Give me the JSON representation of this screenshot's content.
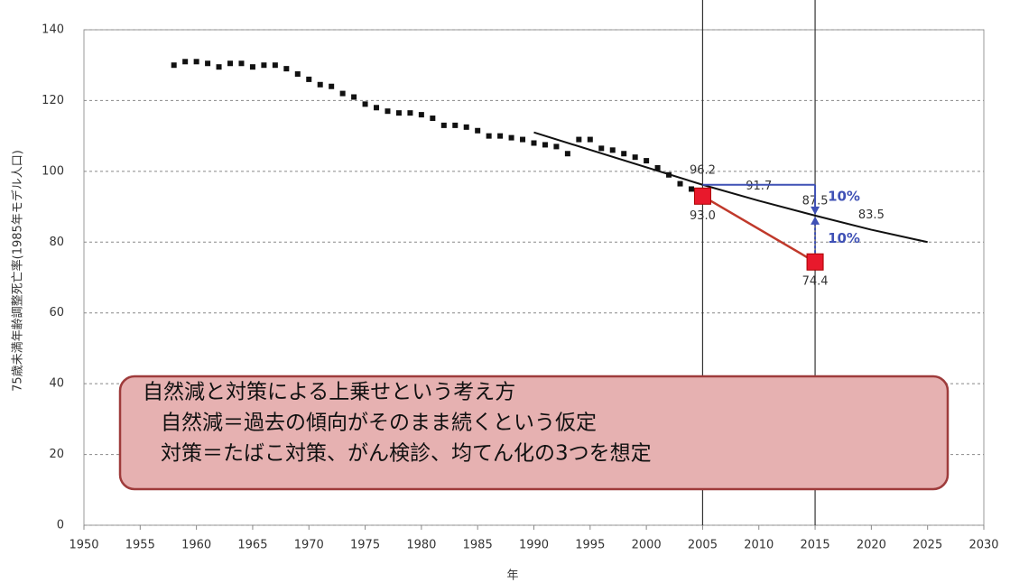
{
  "chart_data": {
    "type": "line",
    "y_label": "75歳未満年齢調整死亡率(1985年モデル人口)",
    "x_label": "年",
    "xlim": [
      1950,
      2030
    ],
    "xticks": [
      1950,
      1955,
      1960,
      1965,
      1970,
      1975,
      1980,
      1985,
      1990,
      1995,
      2000,
      2005,
      2010,
      2015,
      2020,
      2025,
      2030
    ],
    "ylim": [
      0,
      140
    ],
    "yticks": [
      0,
      20,
      40,
      60,
      80,
      100,
      120,
      140
    ],
    "grid": true,
    "vlines": [
      2005,
      2015
    ],
    "series": [
      {
        "style": "markers",
        "color": "#111111",
        "x": [
          1958,
          1959,
          1960,
          1961,
          1962,
          1963,
          1964,
          1965,
          1966,
          1967,
          1968,
          1969,
          1970,
          1971,
          1972,
          1973,
          1974,
          1975,
          1976,
          1977,
          1978,
          1979,
          1980,
          1981,
          1982,
          1983,
          1984,
          1985,
          1986,
          1987,
          1988,
          1989,
          1990,
          1991,
          1992,
          1993,
          1994,
          1995,
          1996,
          1997,
          1998,
          1999,
          2000,
          2001,
          2002,
          2003,
          2004,
          2005
        ],
        "values": [
          130,
          131,
          131,
          130.5,
          129.5,
          130.5,
          130.5,
          129.5,
          130,
          130,
          129,
          127.5,
          126,
          124.5,
          124,
          122,
          121,
          119,
          118,
          117,
          116.5,
          116.5,
          116,
          115,
          113,
          113,
          112.5,
          111.5,
          110,
          110,
          109.5,
          109,
          108,
          107.5,
          107,
          105,
          109,
          109,
          106.5,
          106,
          105,
          104,
          103,
          101,
          99,
          96.5,
          95,
          93
        ]
      },
      {
        "style": "trend",
        "color": "#111111",
        "x": [
          1990,
          2005,
          2010,
          2015,
          2020,
          2025
        ],
        "values": [
          111,
          96.2,
          91.7,
          87.5,
          83.5,
          80
        ],
        "value_labels": [
          null,
          "96.2",
          "91.7",
          "87.5",
          "83.5",
          null
        ]
      },
      {
        "style": "measure",
        "color": "#c0392b",
        "x": [
          2005,
          2015
        ],
        "values": [
          93,
          74.4
        ],
        "value_labels": [
          "93.0",
          "74.4"
        ]
      },
      {
        "style": "target",
        "color": "#3f51b5",
        "x": [
          2005,
          2015
        ],
        "values": [
          96.2,
          96.2
        ]
      }
    ],
    "annotations": [
      "10%",
      "10%"
    ],
    "note": [
      "自然減と対策による上乗せという考え方",
      "自然減＝過去の傾向がそのまま続くという仮定",
      "対策＝たばこ対策、がん検診、均てん化の3つを想定"
    ]
  }
}
